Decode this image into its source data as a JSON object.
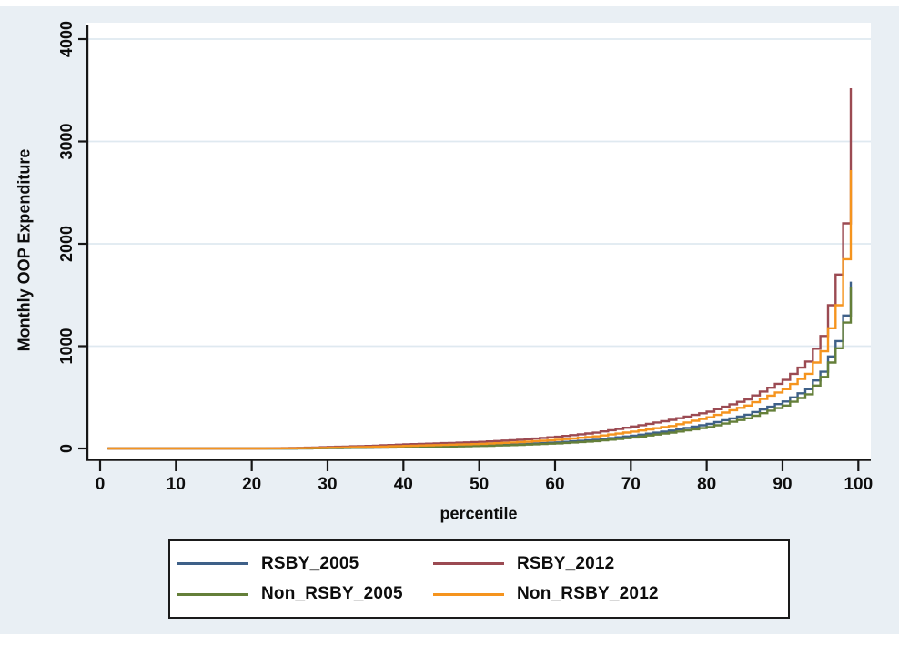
{
  "figure": {
    "background_color": "#e9eff4",
    "plot_background_color": "#ffffff",
    "grid_color": "#dfe9f0",
    "axis_color": "#161616",
    "text_color": "#0d0d0d"
  },
  "chart_data": {
    "type": "line",
    "title": "",
    "xlabel": "percentile",
    "ylabel": "Monthly OOP Expenditure",
    "xlim": [
      0,
      100
    ],
    "ylim": [
      0,
      4000
    ],
    "x_ticks": [
      0,
      10,
      20,
      30,
      40,
      50,
      60,
      70,
      80,
      90,
      100
    ],
    "y_ticks": [
      0,
      1000,
      2000,
      3000,
      4000
    ],
    "grid": "horizontal gridlines at y ticks",
    "line_style": "stairstep",
    "legend_position": "bottom",
    "x": [
      1,
      5,
      10,
      15,
      20,
      25,
      28,
      30,
      35,
      40,
      45,
      50,
      55,
      60,
      65,
      70,
      75,
      80,
      85,
      90,
      93,
      95,
      97,
      98,
      99
    ],
    "series": [
      {
        "name": "RSBY_2005",
        "color": "#3e6088",
        "values": [
          0,
          0,
          0,
          0,
          0,
          0,
          2,
          5,
          8,
          15,
          22,
          30,
          42,
          60,
          85,
          125,
          175,
          240,
          330,
          460,
          580,
          750,
          1050,
          1300,
          1630
        ]
      },
      {
        "name": "Non_RSBY_2005",
        "color": "#647f39",
        "values": [
          0,
          0,
          0,
          0,
          0,
          0,
          2,
          4,
          7,
          12,
          18,
          25,
          35,
          50,
          72,
          108,
          155,
          210,
          295,
          420,
          530,
          700,
          980,
          1230,
          1580
        ]
      },
      {
        "name": "RSBY_2012",
        "color": "#9b4a52",
        "values": [
          0,
          0,
          0,
          0,
          0,
          5,
          10,
          15,
          25,
          40,
          52,
          65,
          85,
          115,
          155,
          215,
          280,
          360,
          480,
          670,
          850,
          1100,
          1700,
          2200,
          3520
        ]
      },
      {
        "name": "Non_RSBY_2012",
        "color": "#f5941e",
        "values": [
          0,
          0,
          0,
          0,
          0,
          2,
          5,
          8,
          15,
          25,
          35,
          45,
          62,
          85,
          118,
          165,
          220,
          305,
          420,
          580,
          730,
          950,
          1400,
          1850,
          2720
        ]
      }
    ]
  },
  "legend": {
    "items": [
      {
        "label": "RSBY_2005",
        "color": "#3e6088"
      },
      {
        "label": "RSBY_2012",
        "color": "#9b4a52"
      },
      {
        "label": "Non_RSBY_2005",
        "color": "#647f39"
      },
      {
        "label": "Non_RSBY_2012",
        "color": "#f5941e"
      }
    ]
  }
}
